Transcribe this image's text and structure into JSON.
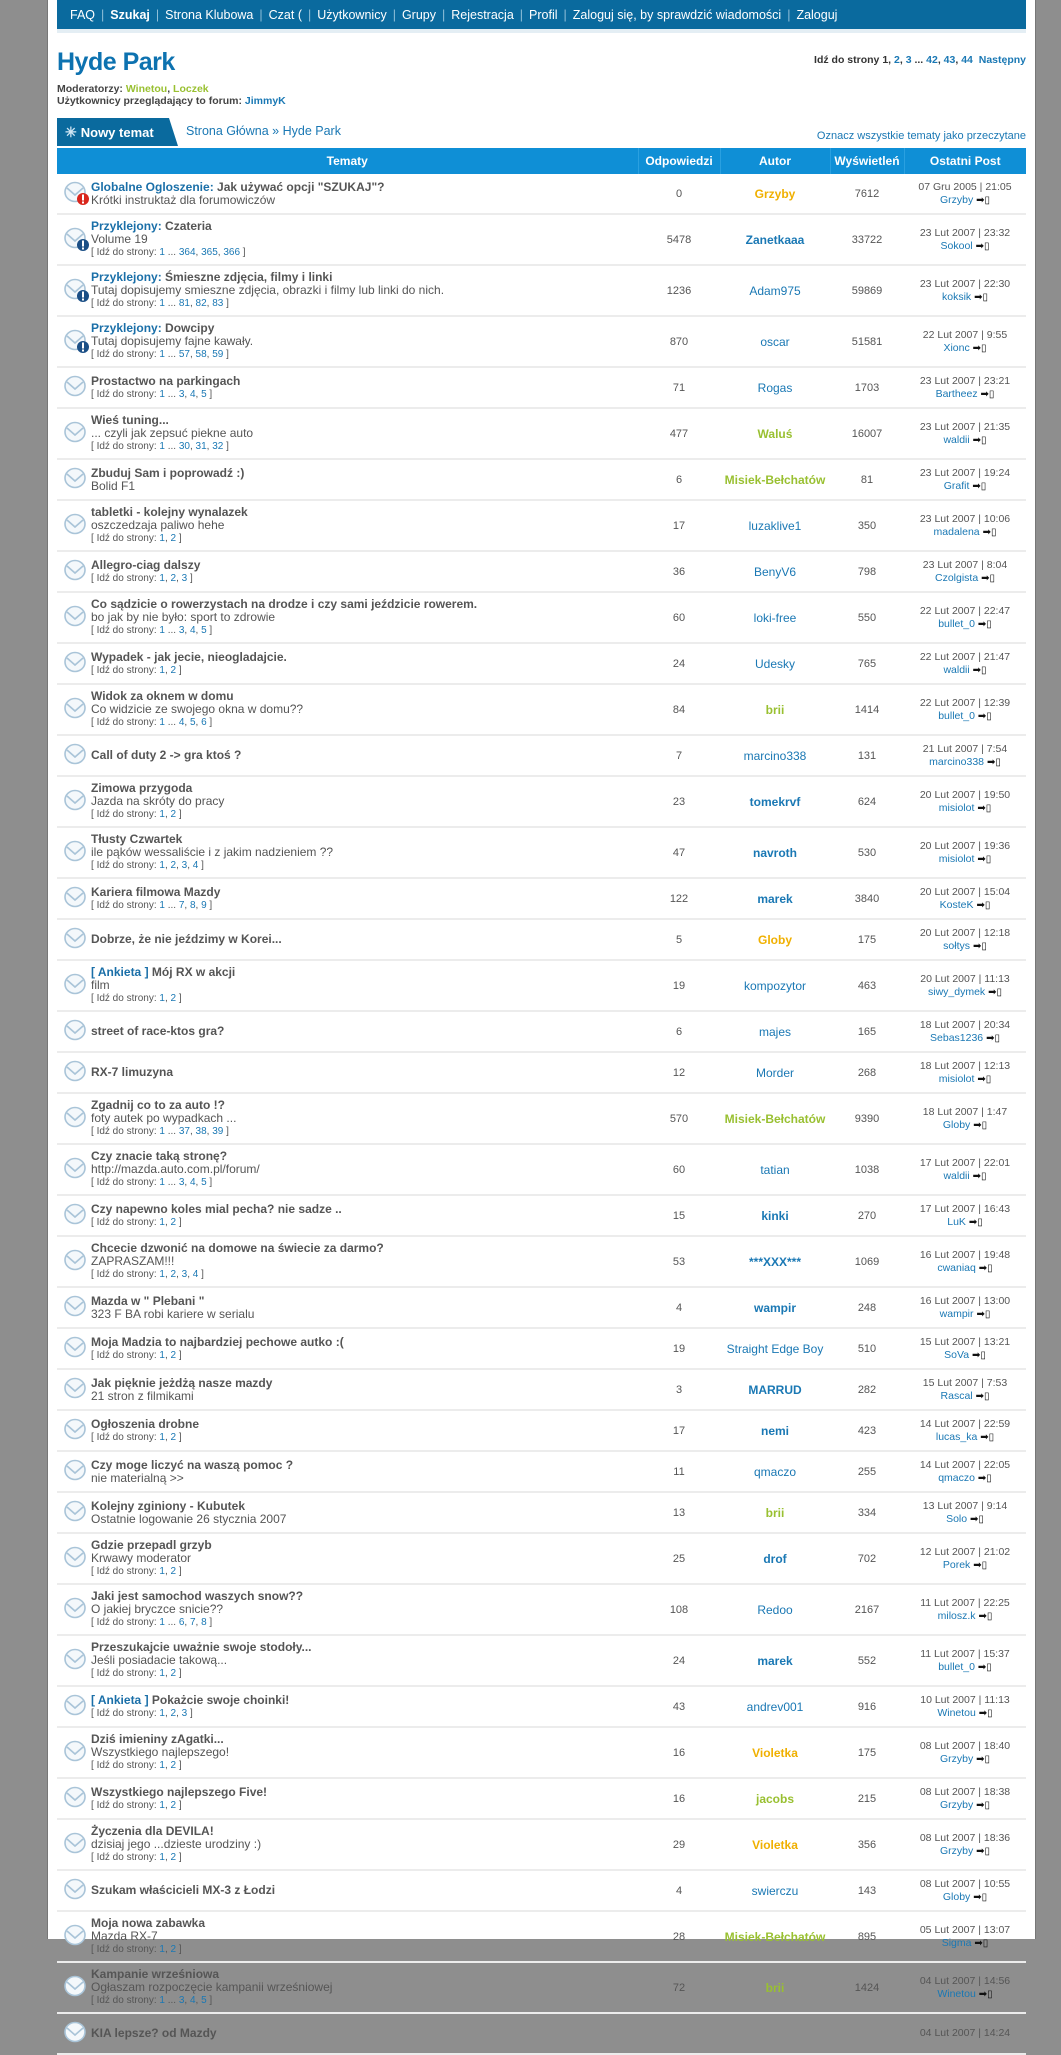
{
  "nav": {
    "items": [
      {
        "label": "FAQ"
      },
      {
        "label": "Szukaj",
        "bold": true
      },
      {
        "label": "Strona Klubowa"
      },
      {
        "label": "Czat (",
        "count": "0",
        "suffix": " )"
      },
      {
        "label": "Użytkownicy"
      },
      {
        "label": "Grupy"
      },
      {
        "label": "Rejestracja"
      },
      {
        "label": "Profil"
      },
      {
        "label": "Zaloguj się, by sprawdzić wiadomości"
      },
      {
        "label": "Zaloguj"
      }
    ]
  },
  "forum": {
    "title": "Hyde Park",
    "moderators_label": "Moderatorzy:",
    "moderators": [
      "Winetou",
      "Loczek"
    ],
    "viewers_label": "Użytkownicy przeglądający to forum:",
    "viewers": "JimmyK"
  },
  "pagination": {
    "label": "Idź do strony",
    "current": "1",
    "pages": [
      "2",
      "3",
      "...",
      "42",
      "43",
      "44"
    ],
    "next": "Następny"
  },
  "toolbar": {
    "new_topic": "Nowy temat",
    "breadcrumb_home": "Strona Główna",
    "breadcrumb_sep": " » ",
    "breadcrumb_current": "Hyde Park",
    "mark_read": "Oznacz wszystkie tematy jako przeczytane"
  },
  "columns": [
    "Tematy",
    "Odpowiedzi",
    "Autor",
    "Wyświetleń",
    "Ostatni Post"
  ],
  "pages_label": "Idź do strony:",
  "colors": {
    "nav": "#0a6a9e",
    "header": "#0f8fd6",
    "link": "#1a78b4",
    "moderator": "#99c031",
    "admin": "#f0b000"
  },
  "topics": [
    {
      "icon": "global",
      "prefix": "Globalne Ogloszenie:",
      "title": "Jak używać opcji \"SZUKAJ\"?",
      "desc": "Krótki instruktaż dla forumowiczów",
      "replies": "0",
      "author": "Grzyby",
      "role": "o",
      "views": "7612",
      "last_date": "07 Gru 2005 | 21:05",
      "last_user": "Grzyby"
    },
    {
      "icon": "sticky",
      "prefix": "Przyklejony:",
      "title": "Czateria",
      "desc": "Volume 19",
      "pages": [
        "1",
        "...",
        "364",
        "365",
        "366"
      ],
      "replies": "5478",
      "author": "Zanetkaaa",
      "role": "b",
      "views": "33722",
      "last_date": "23 Lut 2007 | 23:32",
      "last_user": "Sokool"
    },
    {
      "icon": "sticky",
      "prefix": "Przyklejony:",
      "title": "Śmieszne zdjęcia, filmy i linki",
      "desc": "Tutaj dopisujemy smieszne zdjęcia, obrazki i filmy lub linki do nich.",
      "pages": [
        "1",
        "...",
        "81",
        "82",
        "83"
      ],
      "replies": "1236",
      "author": "Adam975",
      "role": "n",
      "views": "59869",
      "last_date": "23 Lut 2007 | 22:30",
      "last_user": "koksik"
    },
    {
      "icon": "sticky",
      "prefix": "Przyklejony:",
      "title": "Dowcipy",
      "desc": "Tutaj dopisujemy fajne kawały.",
      "pages": [
        "1",
        "...",
        "57",
        "58",
        "59"
      ],
      "replies": "870",
      "author": "oscar",
      "role": "n",
      "views": "51581",
      "last_date": "22 Lut 2007 | 9:55",
      "last_user": "Xionc"
    },
    {
      "title": "Prostactwo na parkingach",
      "pages": [
        "1",
        "...",
        "3",
        "4",
        "5"
      ],
      "replies": "71",
      "author": "Rogas",
      "role": "n",
      "views": "1703",
      "last_date": "23 Lut 2007 | 23:21",
      "last_user": "Bartheez"
    },
    {
      "title": "Wieś tuning...",
      "desc": "... czyli jak zepsuć piekne auto",
      "pages": [
        "1",
        "...",
        "30",
        "31",
        "32"
      ],
      "replies": "477",
      "author": "Waluś",
      "role": "g",
      "views": "16007",
      "last_date": "23 Lut 2007 | 21:35",
      "last_user": "waldii"
    },
    {
      "title": "Zbuduj Sam i poprowadź :)",
      "desc": "Bolid F1",
      "replies": "6",
      "author": "Misiek-Bełchatów",
      "role": "g",
      "views": "81",
      "last_date": "23 Lut 2007 | 19:24",
      "last_user": "Grafit"
    },
    {
      "title": "tabletki - kolejny wynalazek",
      "desc": "oszczedzaja paliwo hehe",
      "pages": [
        "1",
        "2"
      ],
      "replies": "17",
      "author": "luzaklive1",
      "role": "n",
      "views": "350",
      "last_date": "23 Lut 2007 | 10:06",
      "last_user": "madalena"
    },
    {
      "title": "Allegro-ciag dalszy",
      "pages": [
        "1",
        "2",
        "3"
      ],
      "replies": "36",
      "author": "BenyV6",
      "role": "n",
      "views": "798",
      "last_date": "23 Lut 2007 | 8:04",
      "last_user": "Czolgista"
    },
    {
      "title": "Co sądzicie o rowerzystach na drodze i czy sami jeździcie rowerem.",
      "desc": "bo jak by nie było: sport to zdrowie",
      "pages": [
        "1",
        "...",
        "3",
        "4",
        "5"
      ],
      "replies": "60",
      "author": "loki-free",
      "role": "n",
      "views": "550",
      "last_date": "22 Lut 2007 | 22:47",
      "last_user": "bullet_0"
    },
    {
      "title": "Wypadek - jak jecie, nieogladajcie.",
      "pages": [
        "1",
        "2"
      ],
      "replies": "24",
      "author": "Udesky",
      "role": "n",
      "views": "765",
      "last_date": "22 Lut 2007 | 21:47",
      "last_user": "waldii"
    },
    {
      "title": "Widok za oknem w domu",
      "desc": "Co widzicie ze swojego okna w domu??",
      "pages": [
        "1",
        "...",
        "4",
        "5",
        "6"
      ],
      "replies": "84",
      "author": "brii",
      "role": "g",
      "views": "1414",
      "last_date": "22 Lut 2007 | 12:39",
      "last_user": "bullet_0"
    },
    {
      "title": "Call of duty 2 -> gra ktoś ?",
      "replies": "7",
      "author": "marcino338",
      "role": "n",
      "views": "131",
      "last_date": "21 Lut 2007 | 7:54",
      "last_user": "marcino338"
    },
    {
      "title": "Zimowa przygoda",
      "desc": "Jazda na skróty do pracy",
      "pages": [
        "1",
        "2"
      ],
      "replies": "23",
      "author": "tomekrvf",
      "role": "b",
      "views": "624",
      "last_date": "20 Lut 2007 | 19:50",
      "last_user": "misiolot"
    },
    {
      "title": "Tłusty Czwartek",
      "desc": "ile pąków wessaliście i z jakim nadzieniem ??",
      "pages": [
        "1",
        "2",
        "3",
        "4"
      ],
      "replies": "47",
      "author": "navroth",
      "role": "b",
      "views": "530",
      "last_date": "20 Lut 2007 | 19:36",
      "last_user": "misiolot"
    },
    {
      "title": "Kariera filmowa Mazdy",
      "pages": [
        "1",
        "...",
        "7",
        "8",
        "9"
      ],
      "replies": "122",
      "author": "marek",
      "role": "b",
      "views": "3840",
      "last_date": "20 Lut 2007 | 15:04",
      "last_user": "KosteK"
    },
    {
      "title": "Dobrze, że nie jeździmy w Korei...",
      "replies": "5",
      "author": "Globy",
      "role": "o",
      "views": "175",
      "last_date": "20 Lut 2007 | 12:18",
      "last_user": "sołtys"
    },
    {
      "prefix": "[ Ankieta ]",
      "title": "Mój RX w akcji",
      "desc": "film",
      "pages": [
        "1",
        "2"
      ],
      "replies": "19",
      "author": "kompozytor",
      "role": "n",
      "views": "463",
      "last_date": "20 Lut 2007 | 11:13",
      "last_user": "siwy_dymek"
    },
    {
      "title": "street of race-ktos gra?",
      "replies": "6",
      "author": "majes",
      "role": "n",
      "views": "165",
      "last_date": "18 Lut 2007 | 20:34",
      "last_user": "Sebas1236"
    },
    {
      "title": "RX-7 limuzyna",
      "replies": "12",
      "author": "Morder",
      "role": "n",
      "views": "268",
      "last_date": "18 Lut 2007 | 12:13",
      "last_user": "misiolot"
    },
    {
      "title": "Zgadnij co to za auto !?",
      "desc": "foty autek po wypadkach ...",
      "pages": [
        "1",
        "...",
        "37",
        "38",
        "39"
      ],
      "replies": "570",
      "author": "Misiek-Bełchatów",
      "role": "g",
      "views": "9390",
      "last_date": "18 Lut 2007 | 1:47",
      "last_user": "Globy"
    },
    {
      "title": "Czy znacie taką stronę?",
      "desc": "http://mazda.auto.com.pl/forum/",
      "pages": [
        "1",
        "...",
        "3",
        "4",
        "5"
      ],
      "replies": "60",
      "author": "tatian",
      "role": "n",
      "views": "1038",
      "last_date": "17 Lut 2007 | 22:01",
      "last_user": "waldii"
    },
    {
      "title": "Czy napewno koles mial pecha? nie sadze ..",
      "pages": [
        "1",
        "2"
      ],
      "replies": "15",
      "author": "kinki",
      "role": "b",
      "views": "270",
      "last_date": "17 Lut 2007 | 16:43",
      "last_user": "LuK"
    },
    {
      "title": "Chcecie dzwonić na domowe na świecie za darmo?",
      "desc": "ZAPRASZAM!!!",
      "pages": [
        "1",
        "2",
        "3",
        "4"
      ],
      "replies": "53",
      "author": "***XXX***",
      "role": "b",
      "views": "1069",
      "last_date": "16 Lut 2007 | 19:48",
      "last_user": "cwaniaq"
    },
    {
      "title": "Mazda w \" Plebani \"",
      "desc": "323 F BA robi kariere w serialu",
      "replies": "4",
      "author": "wampir",
      "role": "b",
      "views": "248",
      "last_date": "16 Lut 2007 | 13:00",
      "last_user": "wampir"
    },
    {
      "title": "Moja Madzia to najbardziej pechowe autko :(",
      "pages": [
        "1",
        "2"
      ],
      "replies": "19",
      "author": "Straight Edge Boy",
      "role": "n",
      "views": "510",
      "last_date": "15 Lut 2007 | 13:21",
      "last_user": "SoVa"
    },
    {
      "title": "Jak pięknie jeżdżą nasze mazdy",
      "desc": "21 stron z filmikami",
      "replies": "3",
      "author": "MARRUD",
      "role": "b",
      "views": "282",
      "last_date": "15 Lut 2007 | 7:53",
      "last_user": "Rascal"
    },
    {
      "title": "Ogłoszenia drobne",
      "pages": [
        "1",
        "2"
      ],
      "replies": "17",
      "author": "nemi",
      "role": "b",
      "views": "423",
      "last_date": "14 Lut 2007 | 22:59",
      "last_user": "lucas_ka"
    },
    {
      "title": "Czy moge liczyć na waszą pomoc ?",
      "desc": "nie materialną >>",
      "replies": "11",
      "author": "qmaczo",
      "role": "n",
      "views": "255",
      "last_date": "14 Lut 2007 | 22:05",
      "last_user": "qmaczo"
    },
    {
      "title": "Kolejny zginiony - Kubutek",
      "desc": "Ostatnie logowanie 26 stycznia 2007",
      "replies": "13",
      "author": "brii",
      "role": "g",
      "views": "334",
      "last_date": "13 Lut 2007 | 9:14",
      "last_user": "Solo"
    },
    {
      "title": "Gdzie przepadl grzyb",
      "desc": "Krwawy moderator",
      "pages": [
        "1",
        "2"
      ],
      "replies": "25",
      "author": "drof",
      "role": "b",
      "views": "702",
      "last_date": "12 Lut 2007 | 21:02",
      "last_user": "Porek"
    },
    {
      "title": "Jaki jest samochod waszych snow??",
      "desc": "O jakiej bryczce snicie??",
      "pages": [
        "1",
        "...",
        "6",
        "7",
        "8"
      ],
      "replies": "108",
      "author": "Redoo",
      "role": "n",
      "views": "2167",
      "last_date": "11 Lut 2007 | 22:25",
      "last_user": "milosz.k"
    },
    {
      "title": "Przeszukajcie uważnie swoje stodoły...",
      "desc": "Jeśli posiadacie takową...",
      "pages": [
        "1",
        "2"
      ],
      "replies": "24",
      "author": "marek",
      "role": "b",
      "views": "552",
      "last_date": "11 Lut 2007 | 15:37",
      "last_user": "bullet_0"
    },
    {
      "prefix": "[ Ankieta ]",
      "title": "Pokażcie swoje choinki!",
      "pages": [
        "1",
        "2",
        "3"
      ],
      "replies": "43",
      "author": "andrev001",
      "role": "n",
      "views": "916",
      "last_date": "10 Lut 2007 | 11:13",
      "last_user": "Winetou"
    },
    {
      "title": "Dziś imieniny zAgatki...",
      "desc": "Wszystkiego najlepszego!",
      "pages": [
        "1",
        "2"
      ],
      "replies": "16",
      "author": "Violetka",
      "role": "o",
      "views": "175",
      "last_date": "08 Lut 2007 | 18:40",
      "last_user": "Grzyby"
    },
    {
      "title": "Wszystkiego najlepszego Five!",
      "pages": [
        "1",
        "2"
      ],
      "replies": "16",
      "author": "jacobs",
      "role": "g",
      "views": "215",
      "last_date": "08 Lut 2007 | 18:38",
      "last_user": "Grzyby"
    },
    {
      "title": "Życzenia dla DEVILA!",
      "desc": "dzisiaj jego ...dzieste urodziny :)",
      "pages": [
        "1",
        "2"
      ],
      "replies": "29",
      "author": "Violetka",
      "role": "o",
      "views": "356",
      "last_date": "08 Lut 2007 | 18:36",
      "last_user": "Grzyby"
    },
    {
      "title": "Szukam właścicieli MX-3 z Łodzi",
      "replies": "4",
      "author": "swierczu",
      "role": "n",
      "views": "143",
      "last_date": "08 Lut 2007 | 10:55",
      "last_user": "Globy"
    },
    {
      "title": "Moja nowa zabawka",
      "desc": "Mazda RX-7",
      "pages": [
        "1",
        "2"
      ],
      "replies": "28",
      "author": "Misiek-Bełchatów",
      "role": "g",
      "views": "895",
      "last_date": "05 Lut 2007 | 13:07",
      "last_user": "Sigma"
    },
    {
      "title": "Kampanie wrześniowa",
      "desc": "Ogłaszam rozpoczęcie kampanii wrześniowej",
      "pages": [
        "1",
        "...",
        "3",
        "4",
        "5"
      ],
      "replies": "72",
      "author": "brii",
      "role": "g",
      "views": "1424",
      "last_date": "04 Lut 2007 | 14:56",
      "last_user": "Winetou"
    },
    {
      "title": "KIA lepsze? od Mazdy",
      "last_date": "04 Lut 2007 | 14:24"
    }
  ]
}
